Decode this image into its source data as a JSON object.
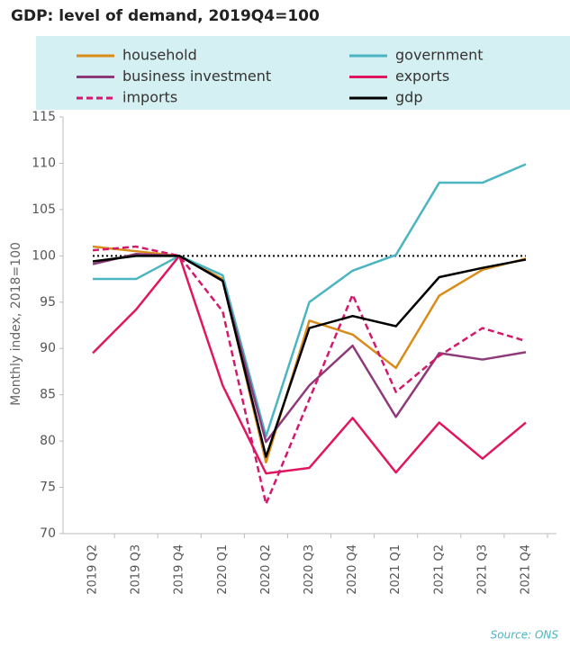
{
  "chart_data": {
    "type": "line",
    "title": "GDP: level of demand, 2019Q4=100",
    "y_label": "Monthly index, 2018=100",
    "source": "Source: ONS",
    "categories": [
      "2019 Q2",
      "2019 Q3",
      "2019 Q4",
      "2020 Q1",
      "2020 Q2",
      "2020 Q3",
      "2020 Q4",
      "2021 Q1",
      "2021 Q2",
      "2021 Q3",
      "2021 Q4"
    ],
    "series": [
      {
        "name": "household",
        "color": "#d98c1a",
        "dash": false,
        "values": [
          101,
          100.5,
          100,
          97.5,
          77.7,
          93,
          91.5,
          87.9,
          95.7,
          98.5,
          99.7
        ]
      },
      {
        "name": "government",
        "color": "#4bb5c1",
        "dash": false,
        "values": [
          97.5,
          97.5,
          100,
          97.9,
          80.5,
          95,
          98.4,
          100.1,
          107.9,
          107.9,
          109.9
        ]
      },
      {
        "name": "business investment",
        "color": "#8e3a7a",
        "dash": false,
        "values": [
          99.1,
          100.2,
          100,
          97.3,
          79.9,
          86,
          90.3,
          82.6,
          89.5,
          88.8,
          89.6
        ]
      },
      {
        "name": "exports",
        "color": "#e0175f",
        "dash": false,
        "values": [
          89.5,
          94.2,
          100,
          86,
          76.5,
          77.1,
          82.5,
          76.6,
          82,
          78.1,
          82
        ]
      },
      {
        "name": "imports",
        "color": "#d4186c",
        "dash": true,
        "values": [
          100.6,
          101,
          100,
          94,
          73.2,
          84.5,
          95.8,
          85.3,
          89.2,
          92.2,
          90.8
        ]
      },
      {
        "name": "gdp",
        "color": "#000000",
        "dash": false,
        "values": [
          99.4,
          100,
          100,
          97.3,
          78.3,
          92.2,
          93.5,
          92.4,
          97.7,
          98.7,
          99.6
        ]
      }
    ],
    "reference_line": 100,
    "ylim": [
      70,
      115
    ],
    "yticks": [
      70,
      75,
      80,
      85,
      90,
      95,
      100,
      105,
      110,
      115
    ],
    "legend_background": "#d5f0f3"
  }
}
